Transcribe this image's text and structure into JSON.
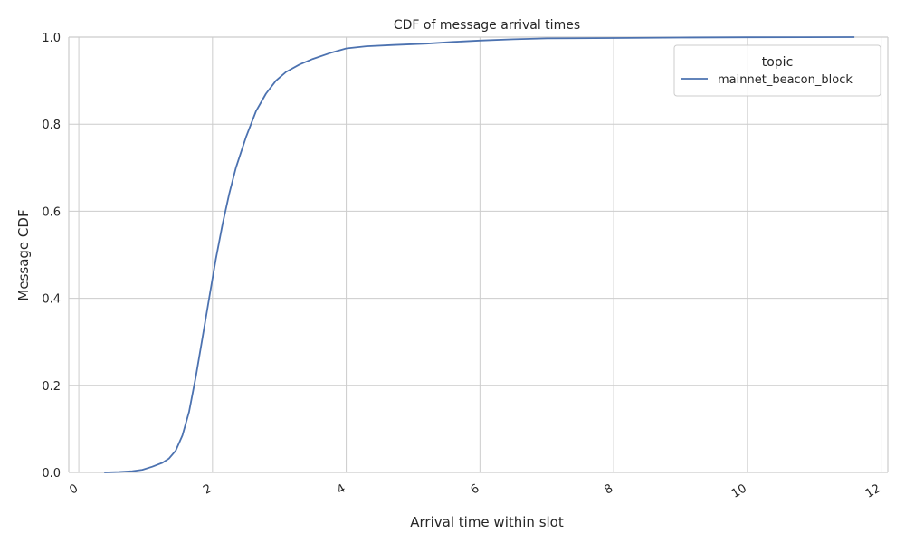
{
  "chart_data": {
    "type": "line",
    "title": "CDF of message arrival times",
    "xlabel": "Arrival time within slot",
    "ylabel": "Message CDF",
    "xlim": [
      -0.15,
      12.1
    ],
    "ylim": [
      0,
      1
    ],
    "x_ticks": [
      "0",
      "2",
      "4",
      "6",
      "8",
      "10",
      "12"
    ],
    "y_ticks": [
      "0.0",
      "0.2",
      "0.4",
      "0.6",
      "0.8",
      "1.0"
    ],
    "grid": true,
    "legend": {
      "title": "topic",
      "position": "top-right"
    },
    "series": [
      {
        "name": "mainnet_beacon_block",
        "color": "#4c72b0",
        "points": [
          [
            0.38,
            0.0
          ],
          [
            0.6,
            0.001
          ],
          [
            0.8,
            0.003
          ],
          [
            0.95,
            0.006
          ],
          [
            1.1,
            0.013
          ],
          [
            1.25,
            0.022
          ],
          [
            1.35,
            0.032
          ],
          [
            1.45,
            0.05
          ],
          [
            1.55,
            0.085
          ],
          [
            1.65,
            0.14
          ],
          [
            1.75,
            0.22
          ],
          [
            1.85,
            0.31
          ],
          [
            1.95,
            0.4
          ],
          [
            2.05,
            0.49
          ],
          [
            2.15,
            0.57
          ],
          [
            2.25,
            0.64
          ],
          [
            2.35,
            0.7
          ],
          [
            2.5,
            0.77
          ],
          [
            2.65,
            0.83
          ],
          [
            2.8,
            0.87
          ],
          [
            2.95,
            0.9
          ],
          [
            3.1,
            0.92
          ],
          [
            3.3,
            0.937
          ],
          [
            3.5,
            0.95
          ],
          [
            3.75,
            0.963
          ],
          [
            4.0,
            0.974
          ],
          [
            4.3,
            0.979
          ],
          [
            4.7,
            0.982
          ],
          [
            5.2,
            0.985
          ],
          [
            5.6,
            0.989
          ],
          [
            6.0,
            0.992
          ],
          [
            6.5,
            0.995
          ],
          [
            7.0,
            0.997
          ],
          [
            8.0,
            0.998
          ],
          [
            9.0,
            0.999
          ],
          [
            10.0,
            0.9995
          ],
          [
            11.6,
            1.0
          ]
        ]
      }
    ]
  }
}
